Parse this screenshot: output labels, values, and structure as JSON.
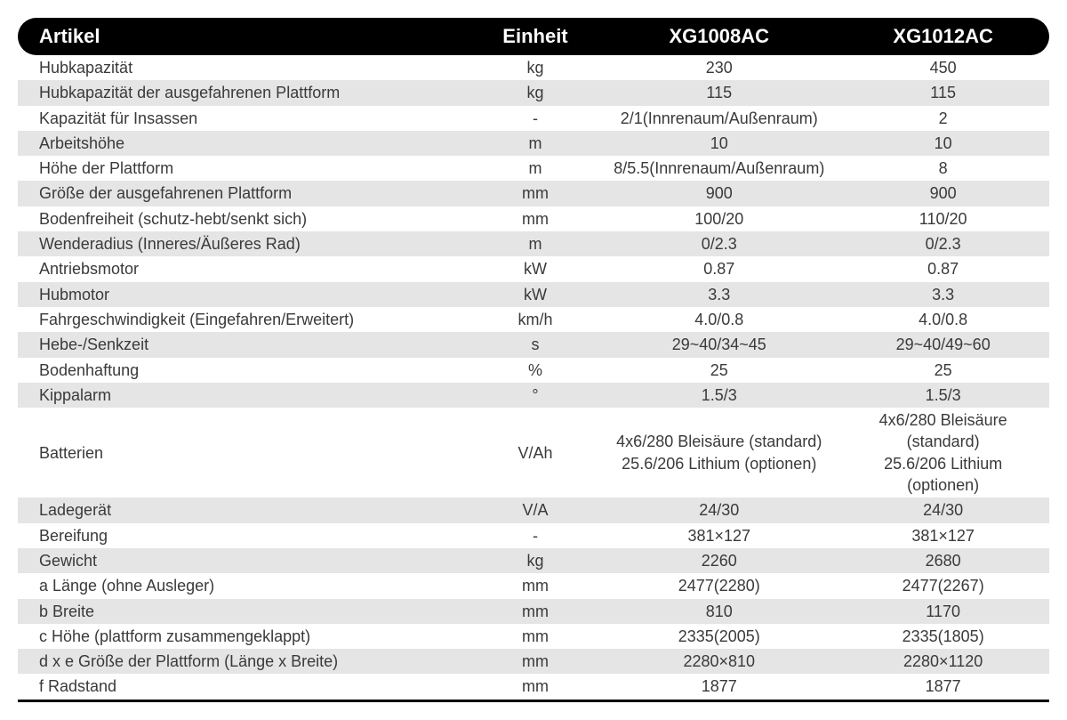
{
  "table": {
    "type": "table",
    "header_bg": "#000000",
    "header_fg": "#ffffff",
    "row_even_bg": "#e5e5e5",
    "row_odd_bg": "#ffffff",
    "text_color": "#3a3a3a",
    "font_size_body": 18,
    "font_size_header": 22,
    "columns": [
      {
        "key": "article",
        "label": "Artikel",
        "align": "left",
        "width_pct": 45
      },
      {
        "key": "unit",
        "label": "Einheit",
        "align": "center",
        "width_pct": 13
      },
      {
        "key": "m1",
        "label": "XG1008AC",
        "align": "center",
        "width_pct": 21
      },
      {
        "key": "m2",
        "label": "XG1012AC",
        "align": "center",
        "width_pct": 21
      }
    ],
    "rows": [
      {
        "article": "Hubkapazität",
        "unit": "kg",
        "m1": "230",
        "m2": "450"
      },
      {
        "article": "Hubkapazität der ausgefahrenen Plattform",
        "unit": "kg",
        "m1": "115",
        "m2": "115"
      },
      {
        "article": "Kapazität für Insassen",
        "unit": "-",
        "m1": "2/1(Innrenaum/Außenraum)",
        "m2": "2"
      },
      {
        "article": "Arbeitshöhe",
        "unit": "m",
        "m1": "10",
        "m2": "10"
      },
      {
        "article": "Höhe der Plattform",
        "unit": "m",
        "m1": "8/5.5(Innrenaum/Außenraum)",
        "m2": "8"
      },
      {
        "article": "Größe der ausgefahrenen Plattform",
        "unit": "mm",
        "m1": "900",
        "m2": "900"
      },
      {
        "article": "Bodenfreiheit (schutz-hebt/senkt sich)",
        "unit": "mm",
        "m1": "100/20",
        "m2": "110/20"
      },
      {
        "article": "Wenderadius (Inneres/Äußeres Rad)",
        "unit": "m",
        "m1": "0/2.3",
        "m2": "0/2.3"
      },
      {
        "article": "Antriebsmotor",
        "unit": "kW",
        "m1": "0.87",
        "m2": "0.87"
      },
      {
        "article": "Hubmotor",
        "unit": "kW",
        "m1": "3.3",
        "m2": "3.3"
      },
      {
        "article": "Fahrgeschwindigkeit (Eingefahren/Erweitert)",
        "unit": "km/h",
        "m1": "4.0/0.8",
        "m2": "4.0/0.8"
      },
      {
        "article": "Hebe-/Senkzeit",
        "unit": "s",
        "m1": "29~40/34~45",
        "m2": "29~40/49~60"
      },
      {
        "article": "Bodenhaftung",
        "unit": "%",
        "m1": "25",
        "m2": "25"
      },
      {
        "article": "Kippalarm",
        "unit": "°",
        "m1": "1.5/3",
        "m2": "1.5/3"
      },
      {
        "article": "Batterien",
        "unit": "V/Ah",
        "m1": "4x6/280 Bleisäure (standard)\n25.6/206 Lithium (optionen)",
        "m2": "4x6/280 Bleisäure (standard)\n25.6/206 Lithium (optionen)",
        "tall": true
      },
      {
        "article": "Ladegerät",
        "unit": "V/A",
        "m1": "24/30",
        "m2": "24/30"
      },
      {
        "article": "Bereifung",
        "unit": "-",
        "m1": "381×127",
        "m2": "381×127"
      },
      {
        "article": "Gewicht",
        "unit": "kg",
        "m1": "2260",
        "m2": "2680"
      },
      {
        "article": "a Länge (ohne Ausleger)",
        "unit": "mm",
        "m1": "2477(2280)",
        "m2": "2477(2267)"
      },
      {
        "article": "b Breite",
        "unit": "mm",
        "m1": "810",
        "m2": "1170"
      },
      {
        "article": "c Höhe (plattform zusammengeklappt)",
        "unit": "mm",
        "m1": "2335(2005)",
        "m2": "2335(1805)"
      },
      {
        "article": "d x e Größe der Plattform (Länge x Breite)",
        "unit": "mm",
        "m1": "2280×810",
        "m2": "2280×1120"
      },
      {
        "article": "f Radstand",
        "unit": "mm",
        "m1": "1877",
        "m2": "1877"
      }
    ]
  }
}
